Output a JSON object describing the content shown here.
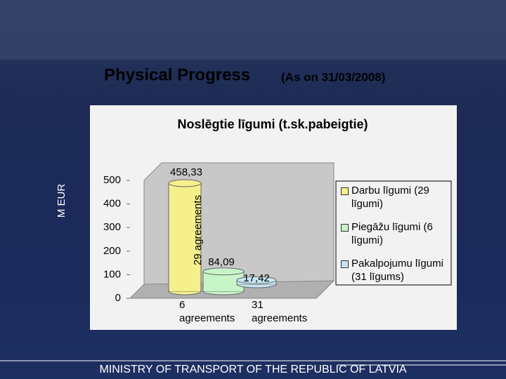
{
  "chart_data": {
    "type": "bar",
    "title": "Physical Progress",
    "subtitle": "(As on 31/03/2008)",
    "chart_title": "Noslēgtie līgumi (t.sk.pabeigtie)",
    "y_label": "M EUR",
    "ylim": [
      0,
      500
    ],
    "yticks": [
      0,
      100,
      200,
      300,
      400,
      500
    ],
    "legend": "right",
    "series": [
      {
        "name": "Darbu līgumi (29 līgumi)",
        "color": "#f5f08c",
        "values": [
          458.33
        ],
        "value_labels": [
          "458,33"
        ]
      },
      {
        "name": "Piegāžu līgumi (6 līgumi)",
        "color": "#c8f5c8",
        "values": [
          84.09
        ],
        "value_labels": [
          "84,09"
        ]
      },
      {
        "name": "Pakalpojumu līgumi (31 līgums)",
        "color": "#c4e6f2",
        "values": [
          17.42
        ],
        "value_labels": [
          "17,42"
        ]
      }
    ],
    "annotations": [
      "29 agreements",
      "6 agreements",
      "31 agreements"
    ]
  },
  "footer": "MINISTRY OF TRANSPORT OF THE REPUBLIC OF LATVIA"
}
